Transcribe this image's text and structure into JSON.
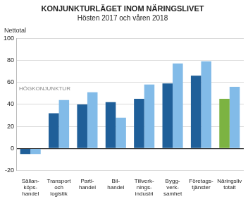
{
  "chart_data": {
    "type": "bar",
    "title": "KONJUNKTURLÄGET INOM NÄRINGSLIVET",
    "subtitle": "Hösten 2017 och våren 2018",
    "ylabel": "Nettotal",
    "annotations": [
      "HÖGKONJUNKTUR"
    ],
    "categories": [
      [
        "Sällan-",
        "köps-",
        "handel"
      ],
      [
        "Transport",
        "och",
        "logistik"
      ],
      [
        "Parti-",
        "handel"
      ],
      [
        "Bil-",
        "handel"
      ],
      [
        "Tillverk-",
        "nings-",
        "industri"
      ],
      [
        "Bygg-",
        "verk-",
        "samhet"
      ],
      [
        "Företags-",
        "tjänster"
      ],
      [
        "Näringsliv",
        "totalt"
      ]
    ],
    "series": [
      {
        "values": [
          -5,
          32,
          40,
          42,
          45,
          59,
          66,
          45
        ],
        "colors": [
          "#1f5f99",
          "#1f5f99",
          "#1f5f99",
          "#1f5f99",
          "#1f5f99",
          "#1f5f99",
          "#1f5f99",
          "#7cb342"
        ]
      },
      {
        "values": [
          -5,
          44,
          51,
          28,
          58,
          77,
          79,
          56
        ],
        "color": "#82bbe8"
      }
    ],
    "ylim": [
      -20,
      100
    ],
    "yticks": [
      -20,
      0,
      20,
      40,
      60,
      80,
      100
    ],
    "grid": true
  }
}
